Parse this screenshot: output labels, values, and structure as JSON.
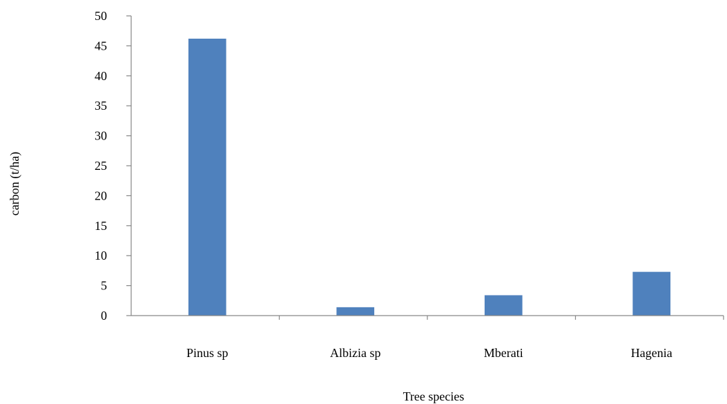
{
  "chart_data": {
    "type": "bar",
    "title": "",
    "xlabel": "Tree species",
    "ylabel": "carbon (t/ha)",
    "categories": [
      "Pinus sp",
      "Albizia sp",
      "Mberati",
      "Hagenia"
    ],
    "series": [
      {
        "values": [
          46.2,
          1.4,
          3.4,
          7.3
        ],
        "color": "#4F81BD"
      }
    ],
    "ylim": [
      0,
      50
    ],
    "yticks": [
      0,
      5,
      10,
      15,
      20,
      25,
      30,
      35,
      40,
      45,
      50
    ],
    "grid": false,
    "legend": "none"
  }
}
